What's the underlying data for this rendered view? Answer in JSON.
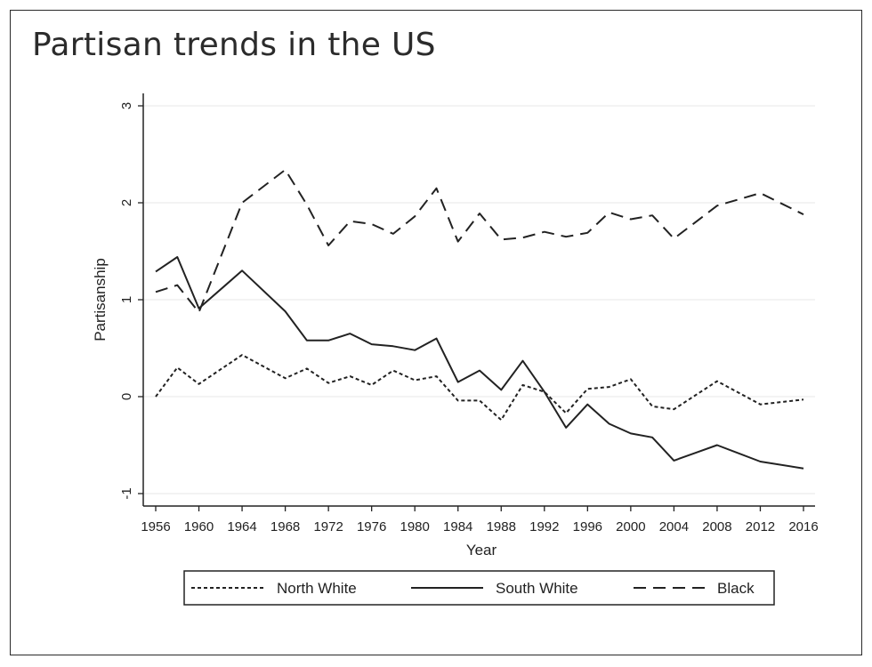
{
  "page": {
    "title": "Partisan trends in the US"
  },
  "chart_data": {
    "type": "line",
    "title": "",
    "xlabel": "Year",
    "ylabel": "Partisanship",
    "xlim": [
      1956,
      2016
    ],
    "ylim": [
      -1,
      3
    ],
    "x_ticks": [
      1956,
      1960,
      1964,
      1968,
      1972,
      1976,
      1980,
      1984,
      1988,
      1992,
      1996,
      2000,
      2004,
      2008,
      2012,
      2016
    ],
    "y_ticks": [
      -1,
      0,
      1,
      2,
      3
    ],
    "grid": "horizontal",
    "legend_position": "bottom",
    "series": [
      {
        "name": "North White",
        "style": "dotted",
        "color": "#222222",
        "x": [
          1956,
          1958,
          1960,
          1964,
          1968,
          1970,
          1972,
          1974,
          1976,
          1978,
          1980,
          1982,
          1984,
          1986,
          1988,
          1990,
          1992,
          1994,
          1996,
          1998,
          2000,
          2002,
          2004,
          2008,
          2012,
          2016
        ],
        "values": [
          0.0,
          0.3,
          0.13,
          0.43,
          0.19,
          0.29,
          0.14,
          0.21,
          0.12,
          0.27,
          0.17,
          0.21,
          -0.04,
          -0.04,
          -0.24,
          0.12,
          0.05,
          -0.17,
          0.08,
          0.1,
          0.18,
          -0.1,
          -0.13,
          0.16,
          -0.08,
          -0.03
        ]
      },
      {
        "name": "South White",
        "style": "solid",
        "color": "#222222",
        "x": [
          1956,
          1958,
          1960,
          1964,
          1968,
          1970,
          1972,
          1974,
          1976,
          1978,
          1980,
          1982,
          1984,
          1986,
          1988,
          1990,
          1992,
          1994,
          1996,
          1998,
          2000,
          2002,
          2004,
          2008,
          2012,
          2016
        ],
        "values": [
          1.29,
          1.44,
          0.91,
          1.3,
          0.88,
          0.58,
          0.58,
          0.65,
          0.54,
          0.52,
          0.48,
          0.6,
          0.15,
          0.27,
          0.07,
          0.37,
          0.05,
          -0.32,
          -0.08,
          -0.28,
          -0.38,
          -0.42,
          -0.66,
          -0.5,
          -0.67,
          -0.74
        ]
      },
      {
        "name": "Black",
        "style": "dashed",
        "color": "#222222",
        "x": [
          1956,
          1958,
          1960,
          1964,
          1968,
          1970,
          1972,
          1974,
          1976,
          1978,
          1980,
          1982,
          1984,
          1986,
          1988,
          1990,
          1992,
          1994,
          1996,
          1998,
          2000,
          2002,
          2004,
          2008,
          2012,
          2016
        ],
        "values": [
          1.08,
          1.15,
          0.87,
          2.0,
          2.34,
          1.98,
          1.56,
          1.81,
          1.78,
          1.68,
          1.86,
          2.15,
          1.6,
          1.89,
          1.62,
          1.64,
          1.7,
          1.65,
          1.69,
          1.9,
          1.83,
          1.87,
          1.63,
          1.97,
          2.1,
          1.88
        ]
      }
    ]
  }
}
